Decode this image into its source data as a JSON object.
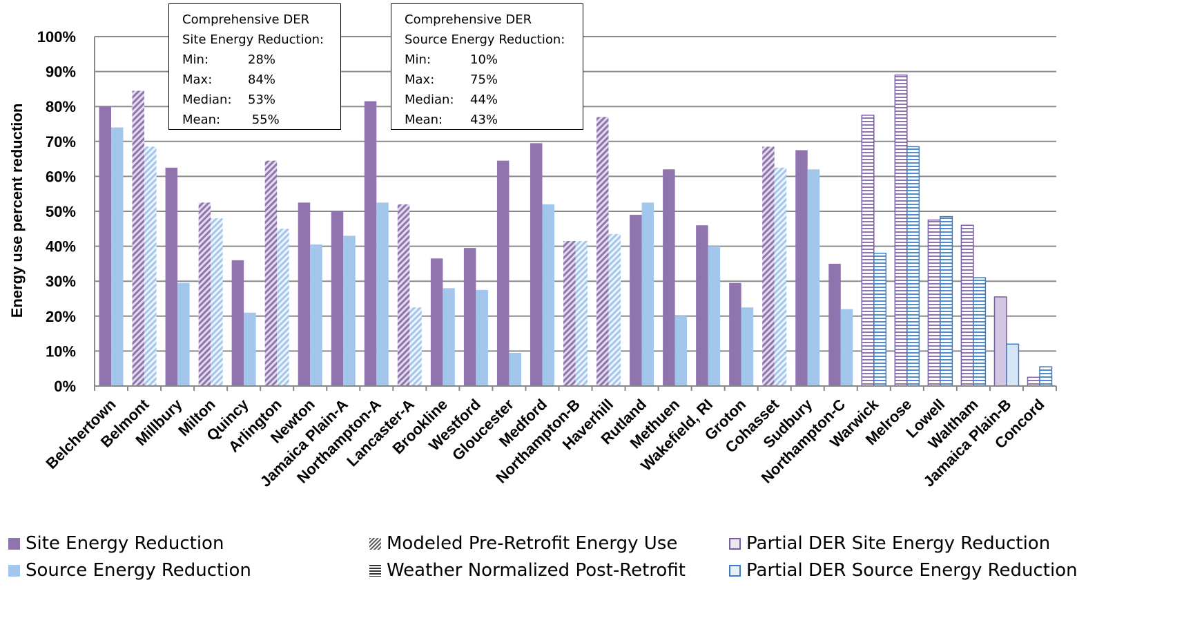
{
  "chart_data": {
    "type": "bar",
    "ylabel": "Energy use percent reduction",
    "ylim": [
      0,
      100
    ],
    "yticks": [
      "0%",
      "10%",
      "20%",
      "30%",
      "40%",
      "50%",
      "60%",
      "70%",
      "80%",
      "90%",
      "100%"
    ],
    "grid": true,
    "categories": [
      "Belchertown",
      "Belmont",
      "Millbury",
      "Milton",
      "Quincy",
      "Arlington",
      "Newton",
      "Jamaica Plain-A",
      "Northampton-A",
      "Lancaster-A",
      "Brookline",
      "Westford",
      "Gloucester",
      "Medford",
      "Northampton-B",
      "Haverhill",
      "Rutland",
      "Methuen",
      "Wakefield, RI",
      "Groton",
      "Cohasset",
      "Sudbury",
      "Northampton-C",
      "Warwick",
      "Melrose",
      "Lowell",
      "Waltham",
      "Jamaica Plain-B",
      "Concord"
    ],
    "series": [
      {
        "name": "Site Energy Reduction",
        "values": [
          80,
          84.5,
          62.5,
          52.5,
          36,
          64.5,
          52.5,
          50,
          81.5,
          52,
          36.5,
          39.5,
          64.5,
          69.5,
          41.5,
          77,
          49,
          62,
          46,
          29.5,
          68.5,
          67.5,
          35,
          77.5,
          89,
          47.5,
          46,
          25.5,
          2.5
        ]
      },
      {
        "name": "Source Energy Reduction",
        "values": [
          74,
          68.5,
          29.5,
          48,
          21,
          45,
          40.5,
          43,
          52.5,
          22.5,
          28,
          27.5,
          9.5,
          52,
          41.5,
          43.5,
          52.5,
          20,
          40,
          22.5,
          62.5,
          62,
          22,
          38,
          68.5,
          48.5,
          31,
          12,
          5.5
        ]
      }
    ],
    "bar_styles": [
      "solid",
      "hatch-diag",
      "solid",
      "hatch-diag",
      "solid",
      "hatch-diag",
      "solid",
      "solid",
      "solid",
      "hatch-diag",
      "solid",
      "solid",
      "solid",
      "solid",
      "hatch-diag",
      "hatch-diag",
      "solid",
      "solid",
      "solid",
      "solid",
      "hatch-diag",
      "solid",
      "solid",
      "partial-horiz",
      "partial-horiz",
      "partial-horiz",
      "partial-horiz",
      "partial-plain",
      "partial-horiz"
    ],
    "colors": {
      "site": "#8f74ad",
      "source": "#a3c6ec",
      "site_partial_fill": "#d2c6e2",
      "source_partial_fill": "#d6e6f7",
      "site_partial_edge": "#7a5fa0",
      "source_partial_edge": "#3e7bc4",
      "axis": "#888888",
      "grid": "#8a8a8a"
    }
  },
  "stat_boxes": [
    {
      "title1": "Comprehensive DER",
      "title2": "Site Energy Reduction:",
      "rows": [
        {
          "label": "Min:",
          "value": "28%"
        },
        {
          "label": "Max:",
          "value": "84%"
        },
        {
          "label": "Median:",
          "value": "53%"
        },
        {
          "label": "Mean:",
          "value": " 55%"
        }
      ]
    },
    {
      "title1": "Comprehensive DER",
      "title2": "Source Energy Reduction:",
      "rows": [
        {
          "label": "Min:",
          "value": "10%"
        },
        {
          "label": "Max:",
          "value": "75%"
        },
        {
          "label": "Median:",
          "value": "44%"
        },
        {
          "label": "Mean:",
          "value": "43%"
        }
      ]
    }
  ],
  "legend": {
    "site": "Site Energy Reduction",
    "source": "Source Energy Reduction",
    "modeled": "Modeled Pre-Retrofit Energy Use",
    "weather": "Weather Normalized Post-Retrofit",
    "partial_site": "Partial DER Site Energy Reduction",
    "partial_source": "Partial DER Source Energy Reduction"
  }
}
